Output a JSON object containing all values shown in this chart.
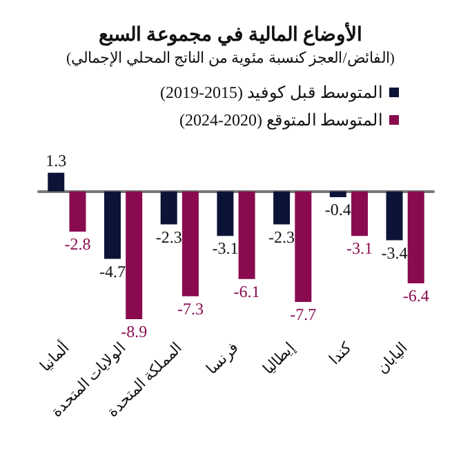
{
  "chart_data": {
    "type": "bar",
    "title": "الأوضاع المالية في مجموعة السبع",
    "subtitle": "(الفائض/العجز كنسبة مئوية من الناتج المحلي الإجمالي)",
    "categories": [
      "ألمانيا",
      "الولايات المتحدة",
      "المملكة المتحدة",
      "فرنسا",
      "إيطاليا",
      "كندا",
      "اليابان"
    ],
    "series": [
      {
        "name": "المتوسط قبل كوفيد (2015-2019)",
        "color": "#0b1437",
        "values": [
          1.3,
          -4.7,
          -2.3,
          -3.1,
          -2.3,
          -0.4,
          -3.4
        ]
      },
      {
        "name": "المتوسط المتوقع (2020-2024)",
        "color": "#8a0a4f",
        "values": [
          -2.8,
          -8.9,
          -7.3,
          -6.1,
          -7.7,
          -3.1,
          -6.4
        ]
      }
    ],
    "data_labels": true,
    "legend": "top right"
  }
}
